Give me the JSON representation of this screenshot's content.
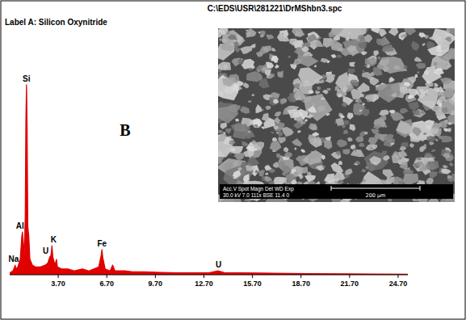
{
  "chart_data": {
    "type": "area",
    "title": "C:\\EDS\\USR\\281221\\DrMShbn3.spc",
    "subtitle": "Label A: Silicon Oxynitride",
    "panel_label": "B",
    "color": "#e00000",
    "x": [
      0.7,
      0.9,
      1.0,
      1.04,
      1.08,
      1.2,
      1.35,
      1.45,
      1.49,
      1.53,
      1.6,
      1.66,
      1.7,
      1.74,
      1.78,
      1.82,
      1.88,
      1.95,
      2.1,
      2.3,
      2.6,
      2.9,
      3.05,
      3.17,
      3.25,
      3.31,
      3.37,
      3.5,
      3.59,
      3.65,
      3.9,
      4.3,
      4.7,
      5.2,
      5.6,
      5.9,
      6.2,
      6.35,
      6.4,
      6.45,
      6.6,
      6.9,
      7.06,
      7.2,
      7.8,
      8.3,
      9.0,
      10.0,
      11.0,
      12.0,
      13.0,
      13.6,
      14.0,
      15.0,
      17.0,
      19.0,
      21.0,
      23.0,
      25.3
    ],
    "values": [
      1,
      2,
      4,
      5,
      3,
      4,
      8,
      20,
      22,
      18,
      10,
      30,
      80,
      98,
      75,
      25,
      20,
      8,
      5,
      4,
      4,
      5,
      6,
      9,
      10,
      15,
      9,
      5,
      8,
      4,
      3,
      3,
      2,
      3,
      2,
      3,
      4,
      10,
      13,
      9,
      3,
      2,
      5,
      2,
      2,
      1.5,
      1.5,
      1.2,
      1,
      1,
      1,
      2,
      1,
      1,
      0.8,
      0.6,
      0.5,
      0.4,
      0.3
    ],
    "xlim": [
      0.7,
      25.3
    ],
    "ylim": [
      0,
      100
    ],
    "xticks": [
      {
        "value": 3.7,
        "label": "3.70"
      },
      {
        "value": 6.7,
        "label": "6.70"
      },
      {
        "value": 9.7,
        "label": "9.70"
      },
      {
        "value": 12.7,
        "label": "12.70"
      },
      {
        "value": 15.7,
        "label": "15.70"
      },
      {
        "value": 18.7,
        "label": "18.70"
      },
      {
        "value": 21.7,
        "label": "21.70"
      },
      {
        "value": 24.7,
        "label": "24.70"
      }
    ],
    "tick_labels": "x",
    "grid": false,
    "annotations": [
      {
        "text": "Si",
        "x": 1.74,
        "y": 98
      },
      {
        "text": "Al",
        "x": 1.49,
        "y": 22
      },
      {
        "text": "Na",
        "x": 1.04,
        "y": 5
      },
      {
        "text": "K",
        "x": 3.31,
        "y": 15
      },
      {
        "text": "U",
        "x": 3.17,
        "y": 9
      },
      {
        "text": "Fe",
        "x": 6.4,
        "y": 13
      },
      {
        "text": "U",
        "x": 13.6,
        "y": 2
      }
    ],
    "inset": {
      "info_header": "Acc.V  Spot Magn   Det  WD  Exp",
      "info_values": "30.0 kV 7.0   111x    BSE 11.4  0",
      "scale_label": "200 μm"
    }
  }
}
